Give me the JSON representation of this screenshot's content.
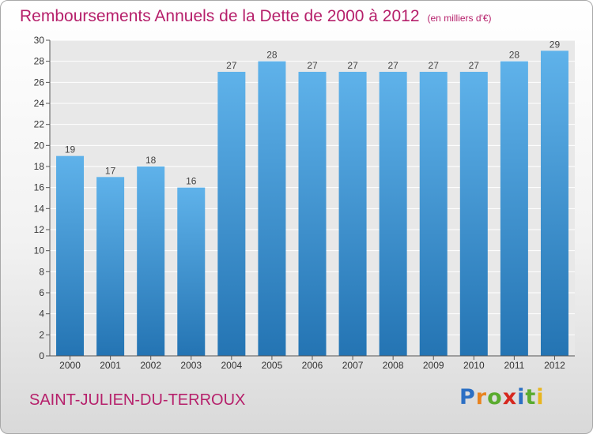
{
  "chart_data": {
    "type": "bar",
    "title": "Remboursements Annuels de la Dette de 2000 à 2012",
    "unit": "(en milliers d'€)",
    "categories": [
      "2000",
      "2001",
      "2002",
      "2003",
      "2004",
      "2005",
      "2006",
      "2007",
      "2008",
      "2009",
      "2010",
      "2011",
      "2012"
    ],
    "values": [
      19,
      17,
      18,
      16,
      27,
      28,
      27,
      27,
      27,
      27,
      27,
      28,
      29
    ],
    "ylim": [
      0,
      30
    ],
    "yticks": [
      0,
      2,
      4,
      6,
      8,
      10,
      12,
      14,
      16,
      18,
      20,
      22,
      24,
      26,
      28,
      30
    ],
    "grid": true,
    "bar_color": "#4f9fdc"
  },
  "commune": "SAINT-JULIEN-DU-TERROUX",
  "logo": {
    "letters": [
      "P",
      "r",
      "o",
      "x",
      "i",
      "t",
      "i"
    ],
    "colors": [
      "#2b6fc4",
      "#e8831f",
      "#5aab2f",
      "#d6281f",
      "#2b6fc4",
      "#5aab2f",
      "#e8b51f"
    ]
  }
}
